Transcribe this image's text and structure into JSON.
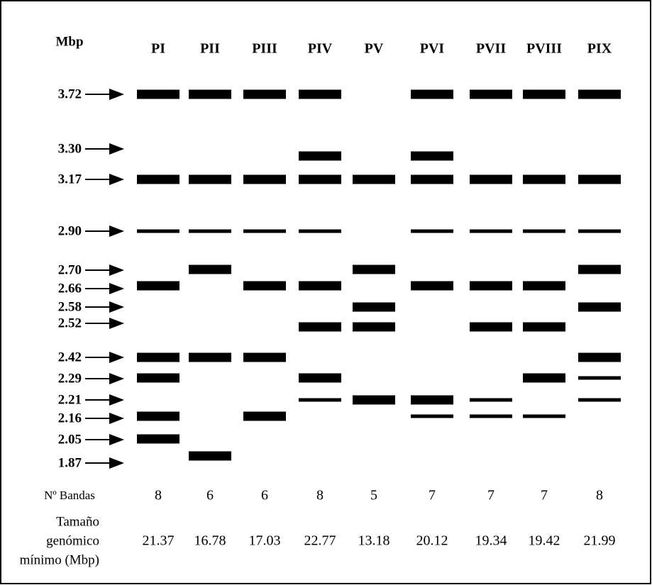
{
  "header": "Mbp",
  "markers": [
    {
      "value": 3.72,
      "label": "3.72"
    },
    {
      "value": 3.3,
      "label": "3.30"
    },
    {
      "value": 3.17,
      "label": "3.17"
    },
    {
      "value": 2.9,
      "label": "2.90"
    },
    {
      "value": 2.7,
      "label": "2.70"
    },
    {
      "value": 2.66,
      "label": "2.66"
    },
    {
      "value": 2.58,
      "label": "2.58"
    },
    {
      "value": 2.52,
      "label": "2.52"
    },
    {
      "value": 2.42,
      "label": "2.42"
    },
    {
      "value": 2.29,
      "label": "2.29"
    },
    {
      "value": 2.21,
      "label": "2.21"
    },
    {
      "value": 2.16,
      "label": "2.16"
    },
    {
      "value": 2.05,
      "label": "2.05"
    },
    {
      "value": 1.87,
      "label": "1.87"
    }
  ],
  "lanes": [
    {
      "name": "PI",
      "bands": [
        3.72,
        3.17,
        2.9,
        2.66,
        2.42,
        2.29,
        2.16,
        2.05
      ],
      "count": 8,
      "size": 21.37
    },
    {
      "name": "PII",
      "bands": [
        3.72,
        3.17,
        2.9,
        2.7,
        2.42,
        1.87
      ],
      "count": 6,
      "size": 16.78
    },
    {
      "name": "PIII",
      "bands": [
        3.72,
        3.17,
        2.9,
        2.66,
        2.42,
        2.16
      ],
      "count": 6,
      "size": 17.03
    },
    {
      "name": "PIV",
      "bands": [
        3.72,
        3.3,
        3.17,
        2.9,
        2.66,
        2.52,
        2.29,
        2.21
      ],
      "count": 8,
      "size": 22.77
    },
    {
      "name": "PV",
      "bands": [
        3.17,
        2.7,
        2.58,
        2.52,
        2.21
      ],
      "count": 5,
      "size": 13.18
    },
    {
      "name": "PVI",
      "bands": [
        3.72,
        3.3,
        3.17,
        2.9,
        2.66,
        2.21,
        2.16
      ],
      "count": 7,
      "size": 20.12
    },
    {
      "name": "PVII",
      "bands": [
        3.72,
        3.17,
        2.9,
        2.66,
        2.52,
        2.21,
        2.16
      ],
      "count": 7,
      "size": 19.34
    },
    {
      "name": "PVIII",
      "bands": [
        3.72,
        3.17,
        2.9,
        2.66,
        2.52,
        2.29,
        2.16
      ],
      "count": 7,
      "size": 19.42
    },
    {
      "name": "PIX",
      "bands": [
        3.72,
        3.17,
        2.9,
        2.7,
        2.58,
        2.42,
        2.29,
        2.21
      ],
      "count": 8,
      "size": 21.99
    }
  ],
  "count_label": "Nº Bandas",
  "size_label": [
    "Tamaño",
    "genómico",
    "mínimo (Mbp)"
  ]
}
